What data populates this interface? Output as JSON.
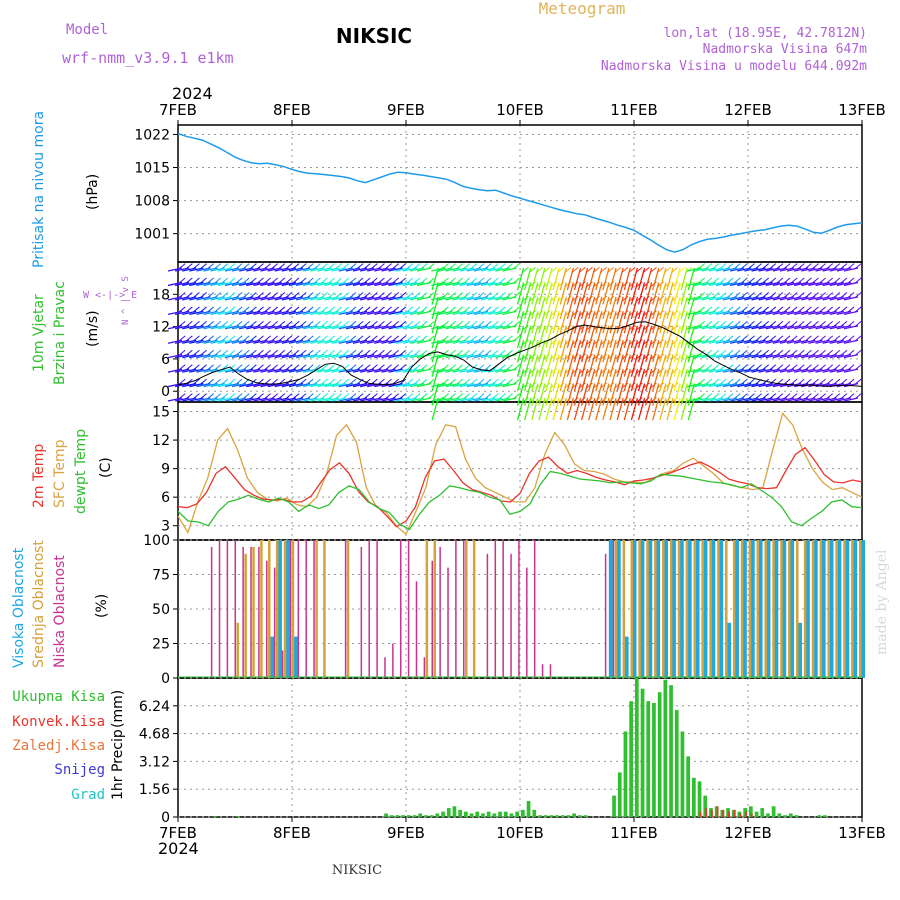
{
  "header": {
    "model_label": "Model",
    "model_name": "wrf-nmm_v3.9.1  e1km",
    "station": "NIKSIC",
    "meteogram": "Meteogram",
    "lonlat": "lon,lat (18.95E, 42.7812N)",
    "elevation": "Nadmorska Visina 647m",
    "model_elevation": "Nadmorska Visina u modelu 644.092m",
    "year_top": "2024",
    "year_bottom": "2024",
    "footer": "NIKSIC",
    "watermark": "made by Angel"
  },
  "colors": {
    "pressure": "#1e9be8",
    "temp2m": "#e8352d",
    "sfc": "#d9a441",
    "dewpt": "#2fbf2f",
    "high_cloud": "#1ea7e0",
    "mid_cloud": "#d4a13a",
    "low_cloud": "#c8338f",
    "precip_total": "#2fbf2f",
    "precip_conv": "#e8352d",
    "model_label": "#b061d6",
    "meteogram": "#e0b35a"
  },
  "chart_data": [
    {
      "type": "line",
      "panel": "pressure",
      "ylabel_left": "Pritisak na nivou mora",
      "unit": "(hPa)",
      "x_ticks": [
        "7FEB",
        "8FEB",
        "9FEB",
        "10FEB",
        "11FEB",
        "12FEB",
        "13FEB"
      ],
      "ylim": [
        995,
        1024
      ],
      "y_ticks": [
        1001,
        1008,
        1015,
        1022
      ],
      "grid": true,
      "series": [
        {
          "values": [
            1022.2,
            1021.6,
            1021.2,
            1020.8,
            1020.0,
            1019.2,
            1018.2,
            1017.2,
            1016.5,
            1016.0,
            1015.8,
            1015.9,
            1015.6,
            1015.2,
            1014.6,
            1014.1,
            1013.8,
            1013.7,
            1013.5,
            1013.3,
            1013.1,
            1012.8,
            1012.2,
            1011.8,
            1012.4,
            1013.0,
            1013.6,
            1014.0,
            1013.9,
            1013.6,
            1013.4,
            1013.1,
            1012.8,
            1012.5,
            1011.8,
            1011.0,
            1010.6,
            1010.3,
            1010.1,
            1010.2,
            1009.6,
            1009.0,
            1008.5,
            1008.0,
            1007.5,
            1007.0,
            1006.5,
            1006.0,
            1005.6,
            1005.2,
            1005.0,
            1004.4,
            1003.9,
            1003.4,
            1002.8,
            1002.3,
            1001.7,
            1000.7,
            999.7,
            998.6,
            997.6,
            997.1,
            997.6,
            998.6,
            999.3,
            999.8,
            1000.0,
            1000.3,
            1000.7,
            1001.0,
            1001.3,
            1001.6,
            1001.8,
            1002.2,
            1002.6,
            1002.8,
            1002.6,
            1002.0,
            1001.3,
            1001.1,
            1001.7,
            1002.4,
            1002.9,
            1003.1,
            1003.3
          ]
        }
      ]
    },
    {
      "type": "line",
      "panel": "wind",
      "ylabel_left": "10m Vjetar",
      "ylabel_left2": "Brzina i Pravac",
      "unit": "(m/s)",
      "ylim": [
        -2,
        24
      ],
      "y_ticks": [
        0,
        6,
        12,
        18
      ],
      "compass": "W <-|-> E",
      "compass_v": "N ^ | v S",
      "series": [
        {
          "name": "speed",
          "values": [
            1.2,
            1.5,
            2.0,
            2.8,
            3.5,
            4.0,
            4.5,
            3.2,
            2.2,
            1.6,
            1.4,
            1.3,
            1.5,
            1.8,
            2.2,
            3.0,
            4.0,
            5.0,
            5.2,
            4.6,
            3.0,
            2.2,
            1.5,
            1.3,
            1.2,
            1.4,
            2.0,
            4.5,
            6.0,
            7.0,
            7.3,
            6.8,
            6.5,
            5.8,
            4.5,
            4.0,
            3.8,
            5.0,
            6.2,
            7.0,
            7.6,
            8.2,
            9.0,
            9.6,
            10.5,
            11.2,
            12.0,
            12.3,
            12.0,
            11.8,
            11.6,
            11.7,
            12.2,
            12.8,
            12.9,
            12.4,
            11.8,
            11.0,
            10.2,
            9.0,
            7.8,
            6.8,
            5.6,
            4.8,
            4.0,
            3.4,
            2.6,
            2.2,
            1.8,
            1.5,
            1.3,
            1.2,
            1.0,
            1.2,
            1.0,
            0.9,
            1.0,
            1.1,
            1.0,
            0.9
          ]
        }
      ]
    },
    {
      "type": "line",
      "panel": "temperature",
      "ylabel_left": "2m Temp",
      "ylabel_left2": "SFC Temp",
      "ylabel_left3": "dewpt Temp",
      "unit": "(C)",
      "ylim": [
        1.5,
        16
      ],
      "y_ticks": [
        3,
        6,
        9,
        12,
        15
      ],
      "series": [
        {
          "name": "2m Temp",
          "values": [
            5.0,
            4.9,
            5.3,
            6.5,
            8.5,
            9.2,
            8.0,
            6.8,
            6.2,
            5.8,
            5.7,
            5.8,
            5.5,
            5.5,
            6.1,
            7.5,
            8.9,
            9.6,
            8.5,
            6.6,
            5.5,
            5.0,
            4.0,
            2.9,
            3.5,
            5.0,
            8.0,
            9.8,
            10.0,
            8.8,
            7.5,
            6.8,
            6.5,
            6.2,
            5.6,
            5.5,
            6.4,
            8.5,
            9.8,
            10.2,
            9.2,
            8.5,
            8.8,
            8.5,
            8.1,
            7.8,
            7.6,
            7.3,
            7.7,
            7.8,
            8.0,
            8.3,
            8.6,
            9.0,
            9.4,
            9.7,
            9.2,
            8.6,
            7.9,
            7.6,
            7.4,
            7.0,
            6.9,
            7.0,
            8.8,
            10.5,
            11.2,
            9.9,
            8.4,
            7.6,
            7.5,
            7.8,
            7.6
          ]
        },
        {
          "name": "SFC Temp",
          "values": [
            4.0,
            2.3,
            5.5,
            8.0,
            12.0,
            13.2,
            11.0,
            8.0,
            6.5,
            5.8,
            5.6,
            5.9,
            5.2,
            5.0,
            6.0,
            8.5,
            12.5,
            13.6,
            11.8,
            7.0,
            5.0,
            4.4,
            3.0,
            2.1,
            4.5,
            7.0,
            11.5,
            13.6,
            13.4,
            10.0,
            8.0,
            7.0,
            6.5,
            6.0,
            5.5,
            5.5,
            7.0,
            10.5,
            12.8,
            11.5,
            9.5,
            8.8,
            8.7,
            8.4,
            7.9,
            7.6,
            7.6,
            7.5,
            8.0,
            8.5,
            8.8,
            9.6,
            10.1,
            9.3,
            8.5,
            7.5,
            7.2,
            7.0,
            6.8,
            7.0,
            11.0,
            14.8,
            13.6,
            11.0,
            9.0,
            7.6,
            6.8,
            7.0,
            6.5,
            6.0
          ]
        },
        {
          "name": "dewpt Temp",
          "values": [
            4.5,
            3.5,
            3.4,
            3.0,
            4.5,
            5.5,
            5.8,
            6.2,
            5.8,
            5.5,
            5.9,
            5.5,
            4.5,
            5.2,
            4.8,
            5.2,
            6.5,
            7.2,
            6.8,
            5.5,
            4.8,
            4.4,
            3.2,
            2.6,
            4.2,
            5.5,
            6.2,
            7.2,
            7.0,
            6.7,
            6.5,
            6.0,
            5.7,
            4.2,
            4.5,
            5.3,
            7.3,
            8.7,
            8.5,
            8.2,
            7.9,
            7.8,
            7.7,
            7.5,
            7.6,
            7.5,
            7.4,
            7.7,
            8.4,
            8.3,
            8.2,
            8.0,
            7.8,
            7.6,
            7.5,
            7.3,
            7.0,
            7.4,
            6.7,
            6.0,
            5.0,
            3.4,
            3.0,
            3.8,
            4.5,
            5.5,
            5.7,
            5.0,
            4.9
          ]
        }
      ]
    },
    {
      "type": "bar",
      "panel": "cloud",
      "ylabel_left": "Visoka Oblacnost",
      "ylabel_left2": "Srednja Oblacnost",
      "ylabel_left3": "Niska Oblacnost",
      "unit": "(%)",
      "ylim": [
        0,
        100
      ],
      "y_ticks": [
        0,
        25,
        50,
        75,
        100
      ],
      "series": [
        {
          "name": "Niska Oblacnost",
          "values": [
            0,
            95,
            100,
            100,
            100,
            95,
            95,
            95,
            85,
            80,
            20,
            100,
            100,
            100,
            100,
            0,
            0,
            0,
            100,
            0,
            95,
            100,
            100,
            15,
            25,
            100,
            100,
            70,
            15,
            85,
            95,
            80,
            100,
            100,
            0,
            0,
            90,
            100,
            100,
            90,
            100,
            80,
            100,
            10,
            10,
            0,
            0,
            0,
            0,
            0,
            0,
            90,
            100,
            0,
            0,
            0,
            0,
            0,
            0,
            0,
            0,
            0,
            0,
            0,
            0,
            0,
            0,
            0,
            0,
            0,
            0,
            0,
            0,
            0,
            0,
            0,
            0,
            0,
            0,
            0,
            0,
            0,
            0,
            0
          ]
        },
        {
          "name": "Srednja Oblacnost",
          "values": [
            0,
            0,
            0,
            0,
            40,
            90,
            95,
            100,
            100,
            100,
            100,
            100,
            0,
            0,
            100,
            100,
            0,
            0,
            100,
            0,
            0,
            0,
            0,
            0,
            0,
            0,
            0,
            0,
            100,
            100,
            0,
            0,
            0,
            100,
            100,
            0,
            0,
            0,
            0,
            0,
            0,
            0,
            0,
            0,
            0,
            0,
            0,
            0,
            0,
            0,
            0,
            0,
            100,
            100,
            100,
            100,
            100,
            100,
            100,
            100,
            100,
            100,
            100,
            100,
            100,
            100,
            100,
            100,
            100,
            100,
            100,
            100,
            100,
            100,
            100,
            100,
            100,
            100,
            100,
            100,
            100,
            100,
            100,
            100
          ]
        },
        {
          "name": "Visoka Oblacnost",
          "values": [
            0,
            0,
            0,
            0,
            0,
            0,
            0,
            0,
            30,
            100,
            100,
            30,
            0,
            0,
            0,
            0,
            0,
            0,
            0,
            0,
            0,
            0,
            0,
            0,
            0,
            0,
            0,
            0,
            0,
            0,
            0,
            0,
            0,
            0,
            0,
            0,
            0,
            0,
            0,
            0,
            0,
            0,
            0,
            0,
            0,
            0,
            0,
            0,
            0,
            0,
            0,
            100,
            100,
            30,
            100,
            100,
            100,
            100,
            100,
            100,
            100,
            100,
            100,
            100,
            100,
            100,
            40,
            100,
            100,
            100,
            100,
            100,
            100,
            100,
            100,
            40,
            100,
            100,
            100,
            100,
            100,
            100,
            100,
            100
          ]
        }
      ]
    },
    {
      "type": "bar",
      "panel": "precip",
      "ylabel_left": "1hr Precip",
      "unit": "(mm)",
      "ylim": [
        0,
        7.8
      ],
      "y_ticks": [
        0,
        1.56,
        3.12,
        4.68,
        6.24
      ],
      "legend": [
        "Ukupna Kisa",
        "Konvek.Kisa",
        "Zaledj.Kisa",
        "Snijeg",
        "Grad"
      ],
      "series": [
        {
          "name": "Ukupna Kisa",
          "values": [
            0,
            0,
            0,
            0,
            0,
            0,
            0.05,
            0,
            0,
            0,
            0.05,
            0,
            0,
            0,
            0,
            0,
            0,
            0,
            0,
            0,
            0,
            0,
            0,
            0,
            0,
            0,
            0,
            0,
            0,
            0,
            0,
            0,
            0,
            0,
            0,
            0,
            0.2,
            0.1,
            0.1,
            0.1,
            0.1,
            0.1,
            0.2,
            0.1,
            0.1,
            0.2,
            0.3,
            0.5,
            0.6,
            0.4,
            0.3,
            0.2,
            0.3,
            0.2,
            0.3,
            0.2,
            0.3,
            0.3,
            0.2,
            0.3,
            0.4,
            0.9,
            0.4,
            0.1,
            0.1,
            0.1,
            0.1,
            0.1,
            0.1,
            0.2,
            0.1,
            0.1,
            0,
            0,
            0,
            0,
            1.2,
            2.5,
            4.8,
            6.5,
            7.8,
            7.2,
            6.5,
            6.4,
            7.0,
            7.7,
            7.4,
            6.0,
            4.8,
            3.4,
            2.2,
            2.0,
            1.2,
            0.5,
            0.6,
            0.4,
            0.5,
            0.4,
            0.3,
            0.5,
            0.6,
            0.3,
            0.5,
            0.2,
            0.6,
            0.2,
            0.1,
            0.2,
            0.1,
            0,
            0,
            0,
            0.1,
            0.1,
            0,
            0,
            0,
            0,
            0,
            0
          ]
        },
        {
          "name": "Konvek.Kisa",
          "values": [
            0,
            0,
            0,
            0,
            0,
            0,
            0,
            0,
            0,
            0,
            0,
            0,
            0,
            0,
            0,
            0,
            0,
            0,
            0,
            0,
            0,
            0,
            0,
            0,
            0,
            0,
            0,
            0,
            0,
            0,
            0,
            0,
            0,
            0,
            0,
            0,
            0,
            0,
            0,
            0,
            0,
            0,
            0,
            0,
            0,
            0,
            0,
            0,
            0,
            0,
            0,
            0,
            0,
            0,
            0,
            0,
            0,
            0,
            0,
            0,
            0,
            0,
            0,
            0,
            0,
            0,
            0,
            0,
            0,
            0,
            0,
            0,
            0,
            0,
            0,
            0,
            0,
            0,
            0,
            0,
            0,
            0,
            0,
            0,
            0,
            0,
            0,
            0,
            0,
            0,
            0,
            0.3,
            0.5,
            0.4,
            0.6,
            0.4,
            0.3,
            0.4,
            0.2,
            0.3,
            0.2,
            0,
            0,
            0,
            0,
            0,
            0,
            0,
            0,
            0,
            0,
            0,
            0,
            0,
            0,
            0,
            0,
            0,
            0,
            0
          ]
        }
      ]
    }
  ]
}
